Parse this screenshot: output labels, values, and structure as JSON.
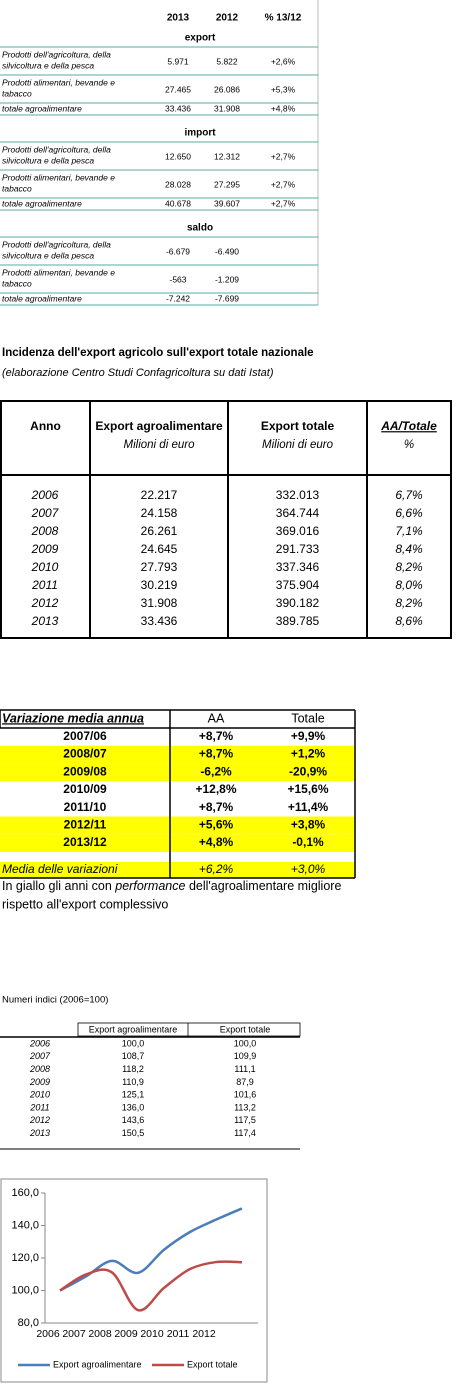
{
  "table1": {
    "header": [
      "2013",
      "2012",
      "% 13/12"
    ],
    "sections": [
      {
        "title": "export",
        "rows": [
          {
            "label": [
              "Prodotti dell'agricoltura, della",
              "silvicoltura e della pesca"
            ],
            "cells": [
              "5.971",
              "5.822",
              "+2,6%"
            ]
          },
          {
            "label": [
              "Prodotti alimentari, bevande e",
              "tabacco"
            ],
            "cells": [
              "27.465",
              "26.086",
              "+5,3%"
            ]
          },
          {
            "label": [
              "totale agroalimentare"
            ],
            "cells": [
              "33.436",
              "31.908",
              "+4,8%"
            ]
          }
        ]
      },
      {
        "title": "import",
        "rows": [
          {
            "label": [
              "Prodotti dell'agricoltura, della",
              "silvicoltura e della pesca"
            ],
            "cells": [
              "12.650",
              "12.312",
              "+2,7%"
            ]
          },
          {
            "label": [
              "Prodotti alimentari, bevande e",
              "tabacco"
            ],
            "cells": [
              "28.028",
              "27.295",
              "+2,7%"
            ]
          },
          {
            "label": [
              "totale agroalimentare"
            ],
            "cells": [
              "40.678",
              "39.607",
              "+2,7%"
            ]
          }
        ]
      },
      {
        "title": "saldo",
        "rows": [
          {
            "label": [
              "Prodotti dell'agricoltura, della",
              "silvicoltura e della pesca"
            ],
            "cells": [
              "-6.679",
              "-6.490"
            ]
          },
          {
            "label": [
              "Prodotti alimentari, bevande e",
              "tabacco"
            ],
            "cells": [
              "-563",
              "-1.209"
            ]
          },
          {
            "label": [
              "totale agroalimentare"
            ],
            "cells": [
              "-7.242",
              "-7.699"
            ]
          }
        ]
      }
    ]
  },
  "table2": {
    "title": "Incidenza dell'export agricolo sull'export totale nazionale",
    "subtitle": "(elaborazione Centro Studi Confagricoltura su dati Istat)",
    "header": [
      {
        "label": "Anno"
      },
      {
        "label": "Export agroalimentare",
        "unit": "Milioni di euro"
      },
      {
        "label": "Export totale",
        "unit": "Milioni di euro"
      },
      {
        "label": "AA/Totale",
        "unit": "%"
      }
    ],
    "rows": [
      [
        "2006",
        "22.217",
        "332.013",
        "6,7%"
      ],
      [
        "2007",
        "24.158",
        "364.744",
        "6,6%"
      ],
      [
        "2008",
        "26.261",
        "369.016",
        "7,1%"
      ],
      [
        "2009",
        "24.645",
        "291.733",
        "8,4%"
      ],
      [
        "2010",
        "27.793",
        "337.346",
        "8,2%"
      ],
      [
        "2011",
        "30.219",
        "375.904",
        "8,0%"
      ],
      [
        "2012",
        "31.908",
        "390.182",
        "8,2%"
      ],
      [
        "2013",
        "33.436",
        "389.785",
        "8,6%"
      ]
    ]
  },
  "table3": {
    "header": [
      "Variazione media annua",
      "AA",
      "Totale"
    ],
    "highlight_color": "#ffff00",
    "rows": [
      {
        "cells": [
          "2007/06",
          "+8,7%",
          "+9,9%"
        ],
        "highlight": false
      },
      {
        "cells": [
          "2008/07",
          "+8,7%",
          "+1,2%"
        ],
        "highlight": true
      },
      {
        "cells": [
          "2009/08",
          "-6,2%",
          "-20,9%"
        ],
        "highlight": true
      },
      {
        "cells": [
          "2010/09",
          "+12,8%",
          "+15,6%"
        ],
        "highlight": false
      },
      {
        "cells": [
          "2011/10",
          "+8,7%",
          "+11,4%"
        ],
        "highlight": false
      },
      {
        "cells": [
          "2012/11",
          "+5,6%",
          "+3,8%"
        ],
        "highlight": true
      },
      {
        "cells": [
          "2013/12",
          "+4,8%",
          "-0,1%"
        ],
        "highlight": true
      }
    ],
    "footer": {
      "cells": [
        "Media delle variazioni",
        "+6,2%",
        "+3,0%"
      ],
      "highlight": true
    },
    "note": {
      "line1": [
        "In giallo gli anni con ",
        "performance",
        " dell'agroalimentare migliore"
      ],
      "line2": "rispetto all'export complessivo"
    }
  },
  "table4": {
    "title": "Numeri indici (2006=100)",
    "header": [
      "Export agroalimentare",
      "Export totale"
    ],
    "rows": [
      [
        "2006",
        "100,0",
        "100,0"
      ],
      [
        "2007",
        "108,7",
        "109,9"
      ],
      [
        "2008",
        "118,2",
        "111,1"
      ],
      [
        "2009",
        "110,9",
        "87,9"
      ],
      [
        "2010",
        "125,1",
        "101,6"
      ],
      [
        "2011",
        "136,0",
        "113,2"
      ],
      [
        "2012",
        "143,6",
        "117,5"
      ],
      [
        "2013",
        "150,5",
        "117,4"
      ]
    ]
  },
  "chart_data": {
    "type": "line",
    "categories": [
      "2006",
      "2007",
      "2008",
      "2009",
      "2010",
      "2011",
      "2012",
      null
    ],
    "series": [
      {
        "name": "Export agroalimentare",
        "color": "#4a7ebb",
        "values": [
          100,
          108.7,
          118.2,
          110.9,
          125.1,
          136.0,
          143.6,
          150.5
        ]
      },
      {
        "name": "Export totale",
        "color": "#be4b48",
        "values": [
          100,
          109.9,
          111.1,
          87.9,
          101.6,
          113.2,
          117.5,
          117.4
        ]
      }
    ],
    "ylim": [
      80,
      160
    ],
    "yticks": [
      {
        "value": 80,
        "label": "80,0"
      },
      {
        "value": 100,
        "label": "100,0"
      },
      {
        "value": 120,
        "label": "120,0"
      },
      {
        "value": 140,
        "label": "140,0"
      },
      {
        "value": 160,
        "label": "160,0"
      }
    ],
    "grid": false,
    "legend": "bottom"
  }
}
